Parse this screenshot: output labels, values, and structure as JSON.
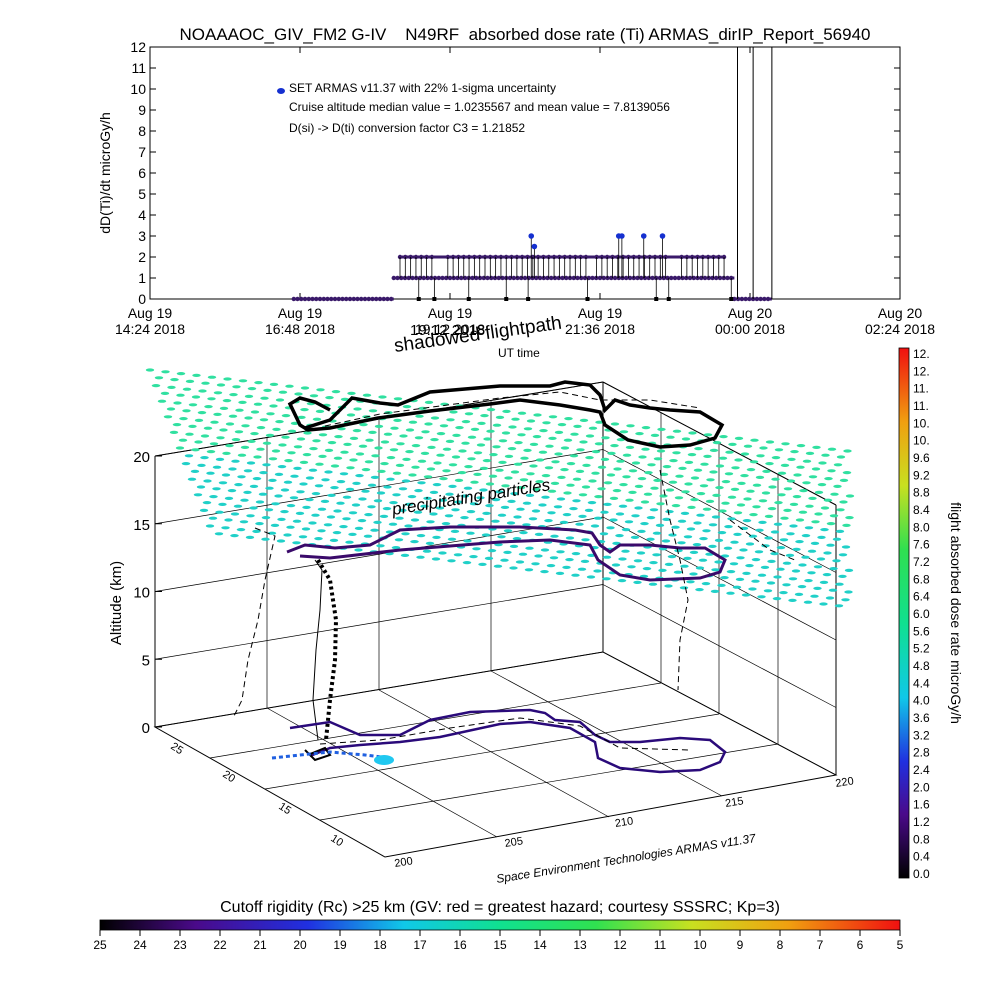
{
  "chart_data": [
    {
      "type": "scatter",
      "title": "NOAAAOC_GIV_FM2 G-IV    N49RF  absorbed dose rate (Ti) ARMAS_dirIP_Report_56940",
      "ylabel": "dD(Ti)/dt microGy/h",
      "xlabel": "UT time",
      "ylim": [
        0,
        12
      ],
      "yticks": [
        "0",
        "1",
        "2",
        "3",
        "4",
        "5",
        "6",
        "7",
        "8",
        "9",
        "10",
        "11",
        "12"
      ],
      "xlim": [
        0,
        12
      ],
      "xticks": [
        {
          "x": 0,
          "line1": "Aug 19",
          "line2": "14:24 2018"
        },
        {
          "x": 2.4,
          "line1": "Aug 19",
          "line2": "16:48 2018"
        },
        {
          "x": 4.8,
          "line1": "Aug 19",
          "line2": "19:12 2018"
        },
        {
          "x": 7.2,
          "line1": "Aug 19",
          "line2": "21:36 2018"
        },
        {
          "x": 9.6,
          "line1": "Aug 20",
          "line2": "00:00 2018"
        },
        {
          "x": 12.0,
          "line1": "Aug 20",
          "line2": "02:24 2018"
        }
      ],
      "legend": {
        "series_label": "SET ARMAS v11.37 with 22% 1-sigma uncertainty",
        "line2": "Cruise altitude median value = 1.0235567 and mean value = 7.8139056",
        "line3": "D(si) -> D(ti) conversion factor C3 = 1.21852",
        "marker_color": "#1530d0"
      },
      "series": [
        {
          "name": "SET ARMAS v11.37 with 22% 1-sigma uncertainty",
          "segments": [
            {
              "x0": 2.3,
              "x1": 3.9,
              "y": 0
            },
            {
              "x0": 3.9,
              "x1": 9.35,
              "y": 1
            },
            {
              "x0": 4.0,
              "x1": 9.2,
              "y": 2
            },
            {
              "x0": 9.35,
              "x1": 9.95,
              "y": 0
            }
          ],
          "high_points": [
            [
              6.1,
              3
            ],
            [
              6.15,
              2.5
            ],
            [
              7.5,
              3
            ],
            [
              7.55,
              3
            ],
            [
              7.9,
              3
            ],
            [
              8.2,
              3
            ]
          ],
          "spikes": [
            [
              9.4,
              12
            ],
            [
              9.65,
              12
            ],
            [
              9.95,
              12
            ]
          ]
        }
      ]
    },
    {
      "type": "3d-scatter",
      "title": "",
      "zlabel": "Altitude (km)",
      "zticks": [
        "0",
        "5",
        "10",
        "15",
        "20"
      ],
      "xticks": [
        "200",
        "205",
        "210",
        "215",
        "220"
      ],
      "yticks": [
        "10",
        "15",
        "20",
        "25"
      ],
      "annotations": {
        "shadow": "shadowed flightpath",
        "shadow_overlay": "19:12 2018",
        "time_label": "UT time",
        "particles": "precipitating particles",
        "credit": "Space Environment Technologies ARMAS v11.37"
      },
      "colorbar": {
        "label": "flight absorbed dose rate microGy/h",
        "ticks": [
          "12.",
          "12.",
          "11.",
          "11.",
          "10.",
          "10.",
          "9.6",
          "9.2",
          "8.8",
          "8.4",
          "8.0",
          "7.6",
          "7.2",
          "6.8",
          "6.4",
          "6.0",
          "5.6",
          "5.2",
          "4.8",
          "4.4",
          "4.0",
          "3.6",
          "3.2",
          "2.8",
          "2.4",
          "2.0",
          "1.6",
          "1.2",
          "0.8",
          "0.4",
          "0.0"
        ]
      },
      "cutoff_bar": {
        "title": "Cutoff rigidity (Rc) >25 km (GV: red = greatest hazard; courtesy SSSRC; Kp=3)",
        "ticks": [
          "25",
          "24",
          "23",
          "22",
          "21",
          "20",
          "19",
          "18",
          "17",
          "16",
          "15",
          "14",
          "13",
          "12",
          "11",
          "10",
          "9",
          "8",
          "7",
          "6",
          "5"
        ]
      }
    }
  ]
}
